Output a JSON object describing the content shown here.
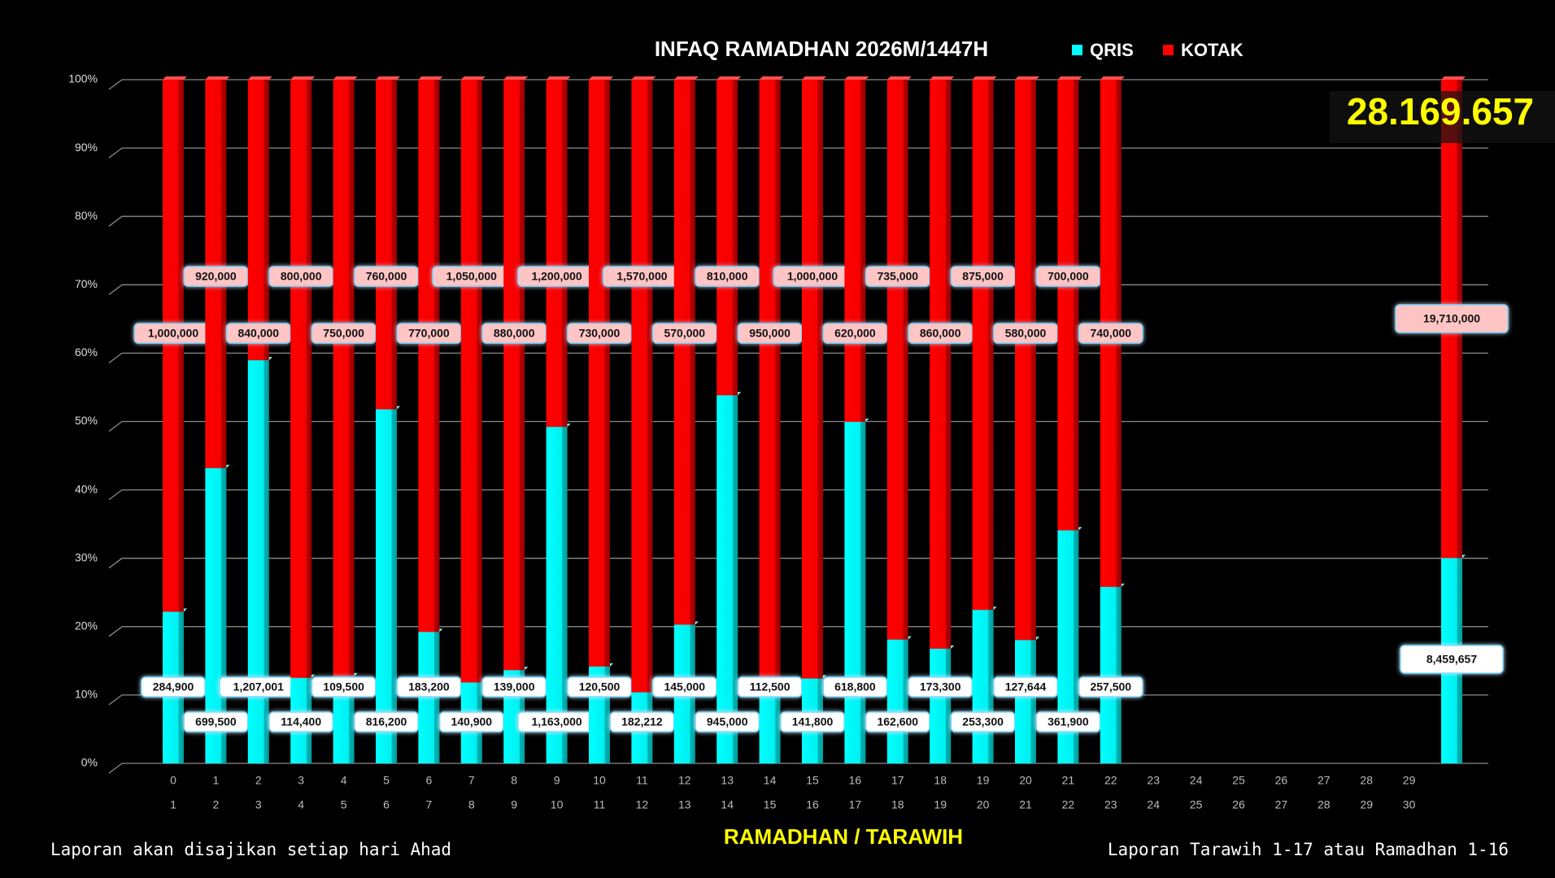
{
  "chart_data": {
    "type": "bar",
    "stacking": "percent",
    "title": "INFAQ RAMADHAN 2026M/1447H",
    "x_label": "RAMADHAN / TARAWIH",
    "footer_left": "Laporan akan disajikan setiap hari Ahad",
    "footer_right": "Laporan Tarawih 1-17 atau Ramadhan 1-16",
    "total_label": "28.169.657",
    "categories": [
      "0",
      "1",
      "2",
      "3",
      "4",
      "5",
      "6",
      "7",
      "8",
      "9",
      "10",
      "11",
      "12",
      "13",
      "14",
      "15",
      "16",
      "17",
      "18",
      "19",
      "20",
      "21",
      "22",
      "23",
      "24",
      "25",
      "26",
      "27",
      "28",
      "29",
      null
    ],
    "categories_secondary": [
      "1",
      "2",
      "3",
      "4",
      "5",
      "6",
      "7",
      "8",
      "9",
      "10",
      "11",
      "12",
      "13",
      "14",
      "15",
      "16",
      "17",
      "18",
      "19",
      "20",
      "21",
      "22",
      "23",
      "24",
      "25",
      "26",
      "27",
      "28",
      "29",
      "30",
      null
    ],
    "series": [
      {
        "name": "QRIS",
        "color": "#00ffff",
        "values": [
          284900,
          699500,
          1207001,
          114400,
          109500,
          816200,
          183200,
          140900,
          139000,
          1163000,
          120500,
          182212,
          145000,
          945000,
          112500,
          141800,
          618800,
          162600,
          173300,
          253300,
          127644,
          361900,
          257500,
          null,
          null,
          null,
          null,
          null,
          null,
          null,
          8459657
        ],
        "value_labels": [
          "284,900",
          "699,500",
          "1,207,001",
          "114,400",
          "109,500",
          "816,200",
          "183,200",
          "140,900",
          "139,000",
          "1,163,000",
          "120,500",
          "182,212",
          "145,000",
          "945,000",
          "112,500",
          "141,800",
          "618,800",
          "162,600",
          "173,300",
          "253,300",
          "127,644",
          "361,900",
          "257,500",
          null,
          null,
          null,
          null,
          null,
          null,
          null,
          "8,459,657"
        ]
      },
      {
        "name": "KOTAK",
        "color": "#ff0000",
        "values": [
          1000000,
          920000,
          840000,
          800000,
          750000,
          760000,
          770000,
          1050000,
          880000,
          1200000,
          730000,
          1570000,
          570000,
          810000,
          950000,
          1000000,
          620000,
          735000,
          860000,
          875000,
          580000,
          700000,
          740000,
          null,
          null,
          null,
          null,
          null,
          null,
          null,
          19710000
        ],
        "value_labels": [
          "1,000,000",
          "920,000",
          "840,000",
          "800,000",
          "750,000",
          "760,000",
          "770,000",
          "1,050,000",
          "880,000",
          "1,200,000",
          "730,000",
          "1,570,000",
          "570,000",
          "810,000",
          "950,000",
          "1,000,000",
          "620,000",
          "735,000",
          "860,000",
          "875,000",
          "580,000",
          "700,000",
          "740,000",
          null,
          null,
          null,
          null,
          null,
          null,
          null,
          "19,710,000"
        ]
      }
    ],
    "ylim": [
      0,
      100
    ],
    "yticks": [
      {
        "value": 0,
        "label": "0%"
      },
      {
        "value": 10,
        "label": "10%"
      },
      {
        "value": 20,
        "label": "20%"
      },
      {
        "value": 30,
        "label": "30%"
      },
      {
        "value": 40,
        "label": "40%"
      },
      {
        "value": 50,
        "label": "50%"
      },
      {
        "value": 60,
        "label": "60%"
      },
      {
        "value": 70,
        "label": "70%"
      },
      {
        "value": 80,
        "label": "80%"
      },
      {
        "value": 90,
        "label": "90%"
      },
      {
        "value": 100,
        "label": "100%"
      }
    ],
    "grid": true
  }
}
